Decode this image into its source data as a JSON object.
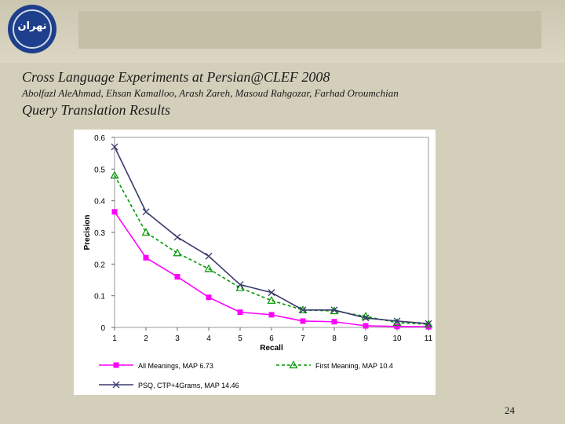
{
  "slide": {
    "title": "Cross Language Experiments at Persian@CLEF 2008",
    "authors": "Abolfazl AleAhmad, Ehsan Kamalloo, Arash Zareh, Masoud Rahgozar, Farhad Oroumchian",
    "subtitle": "Query Translation Results",
    "page_number": "24",
    "logo_text": "تهران"
  },
  "colors": {
    "background": "#d4cfba",
    "series1": "#ff00ff",
    "series2": "#009900",
    "series3": "#3a3a6e"
  },
  "chart_data": {
    "type": "line",
    "title": "",
    "xlabel": "Recall",
    "ylabel": "Precision",
    "x": [
      1,
      2,
      3,
      4,
      5,
      6,
      7,
      8,
      9,
      10,
      11
    ],
    "xticks": [
      "1",
      "2",
      "3",
      "4",
      "5",
      "6",
      "7",
      "8",
      "9",
      "10",
      "11"
    ],
    "ylim": [
      0,
      0.6
    ],
    "yticks": [
      "0",
      "0.1",
      "0.2",
      "0.3",
      "0.4",
      "0.5",
      "0.6"
    ],
    "grid": false,
    "legend": "bottom",
    "series": [
      {
        "name": "All Meanings, MAP 6.73",
        "marker": "square",
        "line": "solid",
        "color": "#ff00ff",
        "values": [
          0.365,
          0.22,
          0.16,
          0.095,
          0.048,
          0.04,
          0.02,
          0.018,
          0.005,
          0.003,
          0.002
        ]
      },
      {
        "name": "First Meaning, MAP 10.4",
        "marker": "triangle",
        "line": "dashed",
        "color": "#009900",
        "values": [
          0.48,
          0.3,
          0.235,
          0.185,
          0.125,
          0.085,
          0.055,
          0.052,
          0.035,
          0.015,
          0.01
        ]
      },
      {
        "name": "PSQ, CTP+4Grams, MAP 14.46",
        "marker": "x",
        "line": "solid",
        "color": "#3a3a6e",
        "values": [
          0.57,
          0.365,
          0.285,
          0.225,
          0.135,
          0.11,
          0.055,
          0.055,
          0.03,
          0.02,
          0.012
        ]
      }
    ]
  }
}
